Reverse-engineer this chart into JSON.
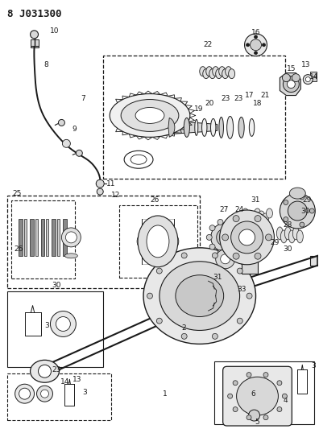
{
  "title": "8 J031300",
  "bg_color": "#ffffff",
  "line_color": "#1a1a1a",
  "fig_width": 3.96,
  "fig_height": 5.33,
  "dpi": 100
}
